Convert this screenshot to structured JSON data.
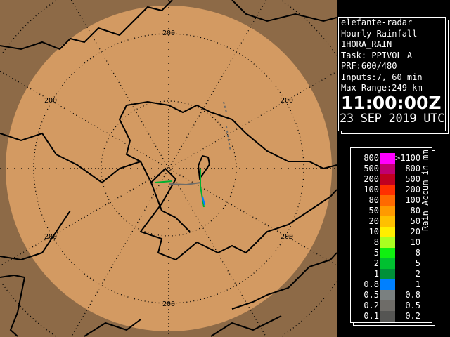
{
  "info": {
    "radar": "elefante-radar",
    "product": "Hourly Rainfall",
    "product_code": "1HORA_RAIN",
    "task": "Task: PPIVOL_A",
    "prf": "PRF:600/480",
    "inputs": "Inputs:7, 60 min",
    "max_range": "Max Range:249 km",
    "time": "11:00:00Z",
    "date": "23 SEP 2019 UTC"
  },
  "map": {
    "range_labels": [
      "200",
      "200",
      "200",
      "200",
      "200",
      "200"
    ],
    "colors": {
      "in_range": "#d39a62",
      "out_range": "#8d6a47",
      "border": "#000000"
    }
  },
  "legend": {
    "unit_label": "Rain Accum in mm",
    "rows": [
      {
        "low": "800",
        "high": ">1100",
        "color": "#ff00ff"
      },
      {
        "low": "500",
        "high": "800",
        "color": "#c00070"
      },
      {
        "low": "200",
        "high": "500",
        "color": "#c00020"
      },
      {
        "low": "100",
        "high": "200",
        "color": "#ff3000"
      },
      {
        "low": "80",
        "high": "100",
        "color": "#ff6a00"
      },
      {
        "low": "50",
        "high": "80",
        "color": "#ff9a00"
      },
      {
        "low": "20",
        "high": "50",
        "color": "#ffc000"
      },
      {
        "low": "10",
        "high": "20",
        "color": "#ffee00"
      },
      {
        "low": "8",
        "high": "10",
        "color": "#aaff20"
      },
      {
        "low": "5",
        "high": "8",
        "color": "#10f010"
      },
      {
        "low": "2",
        "high": "5",
        "color": "#00c030"
      },
      {
        "low": "1",
        "high": "2",
        "color": "#009038"
      },
      {
        "low": "0.8",
        "high": "1",
        "color": "#0080ff"
      },
      {
        "low": "0.5",
        "high": "0.8",
        "color": "#7a8080"
      },
      {
        "low": "0.2",
        "high": "0.5",
        "color": "#6e6c68"
      },
      {
        "low": "0.1",
        "high": "0.2",
        "color": "#555553"
      }
    ]
  }
}
